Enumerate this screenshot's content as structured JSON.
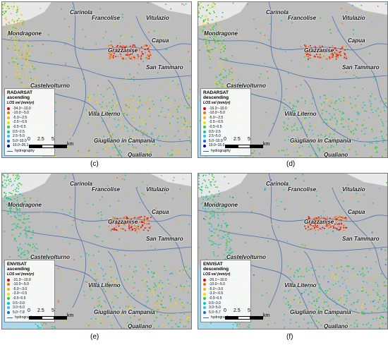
{
  "places": {
    "carinola": "Carinola",
    "francolise": "Francolise",
    "vitulazio": "Vitulazio",
    "mondragone": "Mondragone",
    "capua": "Capua",
    "grazzanise": "Grazzanise",
    "san_tammaro": "San Tammaro",
    "castelvolturno": "Castelvolturno",
    "villa_literno": "Villa Literno",
    "giugliano": "Giugliano in Campania",
    "qualiano": "Qualiano"
  },
  "legend_unit": "LOS vel (mm/yr)",
  "hydrography_label": "hydrography",
  "scale": {
    "t0": "0",
    "t1": "2.5",
    "t2": "5",
    "unit": "km"
  },
  "panels": {
    "c": {
      "caption": "(c)",
      "title_1": "RADARSAT",
      "title_2": "ascending",
      "classes": [
        {
          "label": "-34.3~-10.0",
          "color": "#e00000"
        },
        {
          "label": "-10.0~-5.0",
          "color": "#ff6a00"
        },
        {
          "label": "-5.0~-2.5",
          "color": "#ffb000"
        },
        {
          "label": "-2.5~-0.5",
          "color": "#f0e000"
        },
        {
          "label": "-0.5~0.5",
          "color": "#33cc33"
        },
        {
          "label": "0.5~2.5",
          "color": "#00ccaa"
        },
        {
          "label": "2.5~5.0",
          "color": "#33bbee"
        },
        {
          "label": "5.0~10.0",
          "color": "#1166ee"
        },
        {
          "label": "10.0~26.1",
          "color": "#0000aa"
        }
      ]
    },
    "d": {
      "caption": "(d)",
      "title_1": "RADARSAT",
      "title_2": "descending",
      "classes": [
        {
          "label": "-16.3~-10.0",
          "color": "#e00000"
        },
        {
          "label": "-10.0~-5.0",
          "color": "#ff6a00"
        },
        {
          "label": "-5.0~-2.5",
          "color": "#ffb000"
        },
        {
          "label": "-2.5~-0.5",
          "color": "#f0e000"
        },
        {
          "label": "-0.5~0.5",
          "color": "#33cc33"
        },
        {
          "label": "0.5~2.5",
          "color": "#00ccaa"
        },
        {
          "label": "2.5~5.0",
          "color": "#33bbee"
        },
        {
          "label": "5.0~10.0",
          "color": "#1166ee"
        },
        {
          "label": "10.0~15.0",
          "color": "#0000aa"
        }
      ]
    },
    "e": {
      "caption": "(e)",
      "title_1": "ENVISAT",
      "title_2": "ascending",
      "classes": [
        {
          "label": "-31.3~-10.0",
          "color": "#e00000"
        },
        {
          "label": "-10.0~-5.0",
          "color": "#ff6a00"
        },
        {
          "label": "-5.0~-3.0",
          "color": "#ffb000"
        },
        {
          "label": "-3.0~-0.5",
          "color": "#f0e000"
        },
        {
          "label": "-0.5~0.5",
          "color": "#33cc33"
        },
        {
          "label": "0.5~3.0",
          "color": "#00ccaa"
        },
        {
          "label": "3.0~5.0",
          "color": "#33bbee"
        },
        {
          "label": "5.0~7.8",
          "color": "#1166ee"
        }
      ]
    },
    "f": {
      "caption": "(f)",
      "title_1": "ENVISAT",
      "title_2": "descending",
      "classes": [
        {
          "label": "-26.1~-10.0",
          "color": "#e00000"
        },
        {
          "label": "-10.0~-5.0",
          "color": "#ff6a00"
        },
        {
          "label": "-5.0~-3.0",
          "color": "#ffb000"
        },
        {
          "label": "-3.0~-0.5",
          "color": "#f0e000"
        },
        {
          "label": "-0.5~0.5",
          "color": "#33cc33"
        },
        {
          "label": "0.5~3.0",
          "color": "#00ccaa"
        },
        {
          "label": "3.0~5.0",
          "color": "#33bbee"
        },
        {
          "label": "5.0~5.7",
          "color": "#1166ee"
        }
      ]
    }
  }
}
